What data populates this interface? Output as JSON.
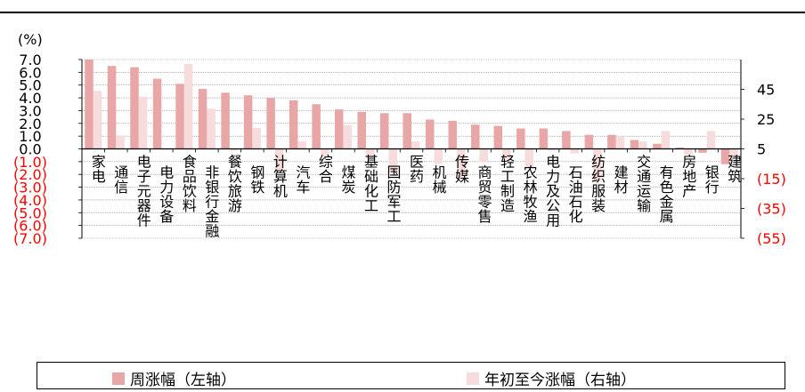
{
  "chart_data": {
    "type": "bar",
    "unit_label": "(%)",
    "categories": [
      "家电",
      "通信",
      "电子元器件",
      "电力设备",
      "食品饮料",
      "非银行金融",
      "餐饮旅游",
      "钢铁",
      "计算机",
      "汽车",
      "综合",
      "煤炭",
      "基础化工",
      "国防军工",
      "医药",
      "机械",
      "传媒",
      "商贸零售",
      "轻工制造",
      "农林牧渔",
      "电力及公用",
      "石油石化",
      "纺织服装",
      "建材",
      "交通运输",
      "有色金属",
      "房地产",
      "银行",
      "建筑"
    ],
    "series": [
      {
        "name": "周涨幅（左轴）",
        "axis": "left",
        "color": "#e8a6a6",
        "values": [
          7.0,
          6.5,
          6.4,
          5.5,
          5.1,
          4.7,
          4.4,
          4.2,
          4.0,
          3.8,
          3.5,
          3.1,
          2.9,
          2.8,
          2.8,
          2.3,
          2.2,
          1.9,
          1.8,
          1.6,
          1.6,
          1.4,
          1.1,
          1.1,
          0.7,
          0.4,
          0.1,
          -0.3,
          -1.2
        ]
      },
      {
        "name": "年初至今涨幅（右轴）",
        "axis": "right",
        "color": "#f6dcdc",
        "values": [
          44,
          14,
          40,
          5,
          62,
          32,
          4,
          19,
          -9,
          10,
          0,
          21,
          -1,
          -11,
          10,
          -5,
          -15,
          -4,
          -2,
          -8,
          4,
          2,
          -17,
          13,
          10,
          17,
          1,
          17,
          -1
        ]
      }
    ],
    "left_axis": {
      "min": -7,
      "max": 7,
      "tick_labels": [
        "7.0",
        "6.0",
        "5.0",
        "4.0",
        "3.0",
        "2.0",
        "1.0",
        "0.0",
        "(1.0)",
        "(2.0)",
        "(3.0)",
        "(4.0)",
        "(5.0)",
        "(6.0)",
        "(7.0)"
      ]
    },
    "right_axis": {
      "min": -55,
      "max": 65,
      "tick_labels": [
        "45",
        "25",
        "5",
        "(15)",
        "(35)",
        "(55)"
      ],
      "tick_values": [
        45,
        25,
        5,
        -15,
        -35,
        -55
      ]
    },
    "colors": {
      "negative_tick": "#ff0000",
      "positive_tick": "#000000"
    }
  },
  "legend": {
    "items": [
      "周涨幅（左轴）",
      "年初至今涨幅（右轴）"
    ]
  }
}
